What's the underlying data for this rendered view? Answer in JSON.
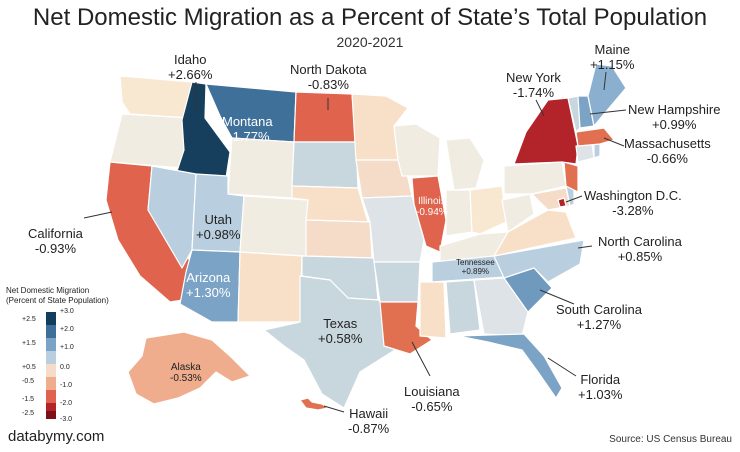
{
  "title": "Net Domestic Migration as a Percent of State’s Total Population",
  "subtitle": "2020-2021",
  "source": "Source: US Census Bureau",
  "brand": "databymy.com",
  "legend": {
    "title_line1": "Net Domestic Migration",
    "title_line2": "(Percent of State Population)",
    "left_ticks": [
      "+2.5",
      "+1.5",
      "+0.5",
      "-0.5",
      "-1.5",
      "-2.5"
    ],
    "right_ticks": [
      "+3.0",
      "+2.0",
      "+1.0",
      "0.0",
      "-1.0",
      "-2.0",
      "-3.0"
    ],
    "colors": [
      "#143d5c",
      "#3d6f99",
      "#7ba3c6",
      "#b9cfdf",
      "#f4dcc8",
      "#efad8e",
      "#e0634d",
      "#b3232a",
      "#7d0f16"
    ]
  },
  "labels": {
    "idaho": {
      "name": "Idaho",
      "value": "+2.66%"
    },
    "north_dakota": {
      "name": "North Dakota",
      "value": "-0.83%"
    },
    "new_york": {
      "name": "New York",
      "value": "-1.74%"
    },
    "maine": {
      "name": "Maine",
      "value": "+1.15%"
    },
    "new_hampshire": {
      "name": "New Hampshire",
      "value": "+0.99%"
    },
    "massachusetts": {
      "name": "Massachusetts",
      "value": "-0.66%"
    },
    "washington_dc": {
      "name": "Washington D.C.",
      "value": "-3.28%"
    },
    "north_carolina": {
      "name": "North Carolina",
      "value": "+0.85%"
    },
    "south_carolina": {
      "name": "South Carolina",
      "value": "+1.27%"
    },
    "florida": {
      "name": "Florida",
      "value": "+1.03%"
    },
    "louisiana": {
      "name": "Louisiana",
      "value": "-0.65%"
    },
    "hawaii": {
      "name": "Hawaii",
      "value": "-0.87%"
    },
    "texas": {
      "name": "Texas",
      "value": "+0.58%"
    },
    "alaska": {
      "name": "Alaska",
      "value": "-0.53%"
    },
    "arizona": {
      "name": "Arizona",
      "value": "+1.30%"
    },
    "utah": {
      "name": "Utah",
      "value": "+0.98%"
    },
    "california": {
      "name": "California",
      "value": "-0.93%"
    },
    "montana": {
      "name": "Montana",
      "value": "+1.77%"
    },
    "illinois": {
      "name": "Illinois",
      "value": "-0.94%"
    },
    "tennessee": {
      "name": "Tennessee",
      "value": "+0.89%"
    }
  }
}
